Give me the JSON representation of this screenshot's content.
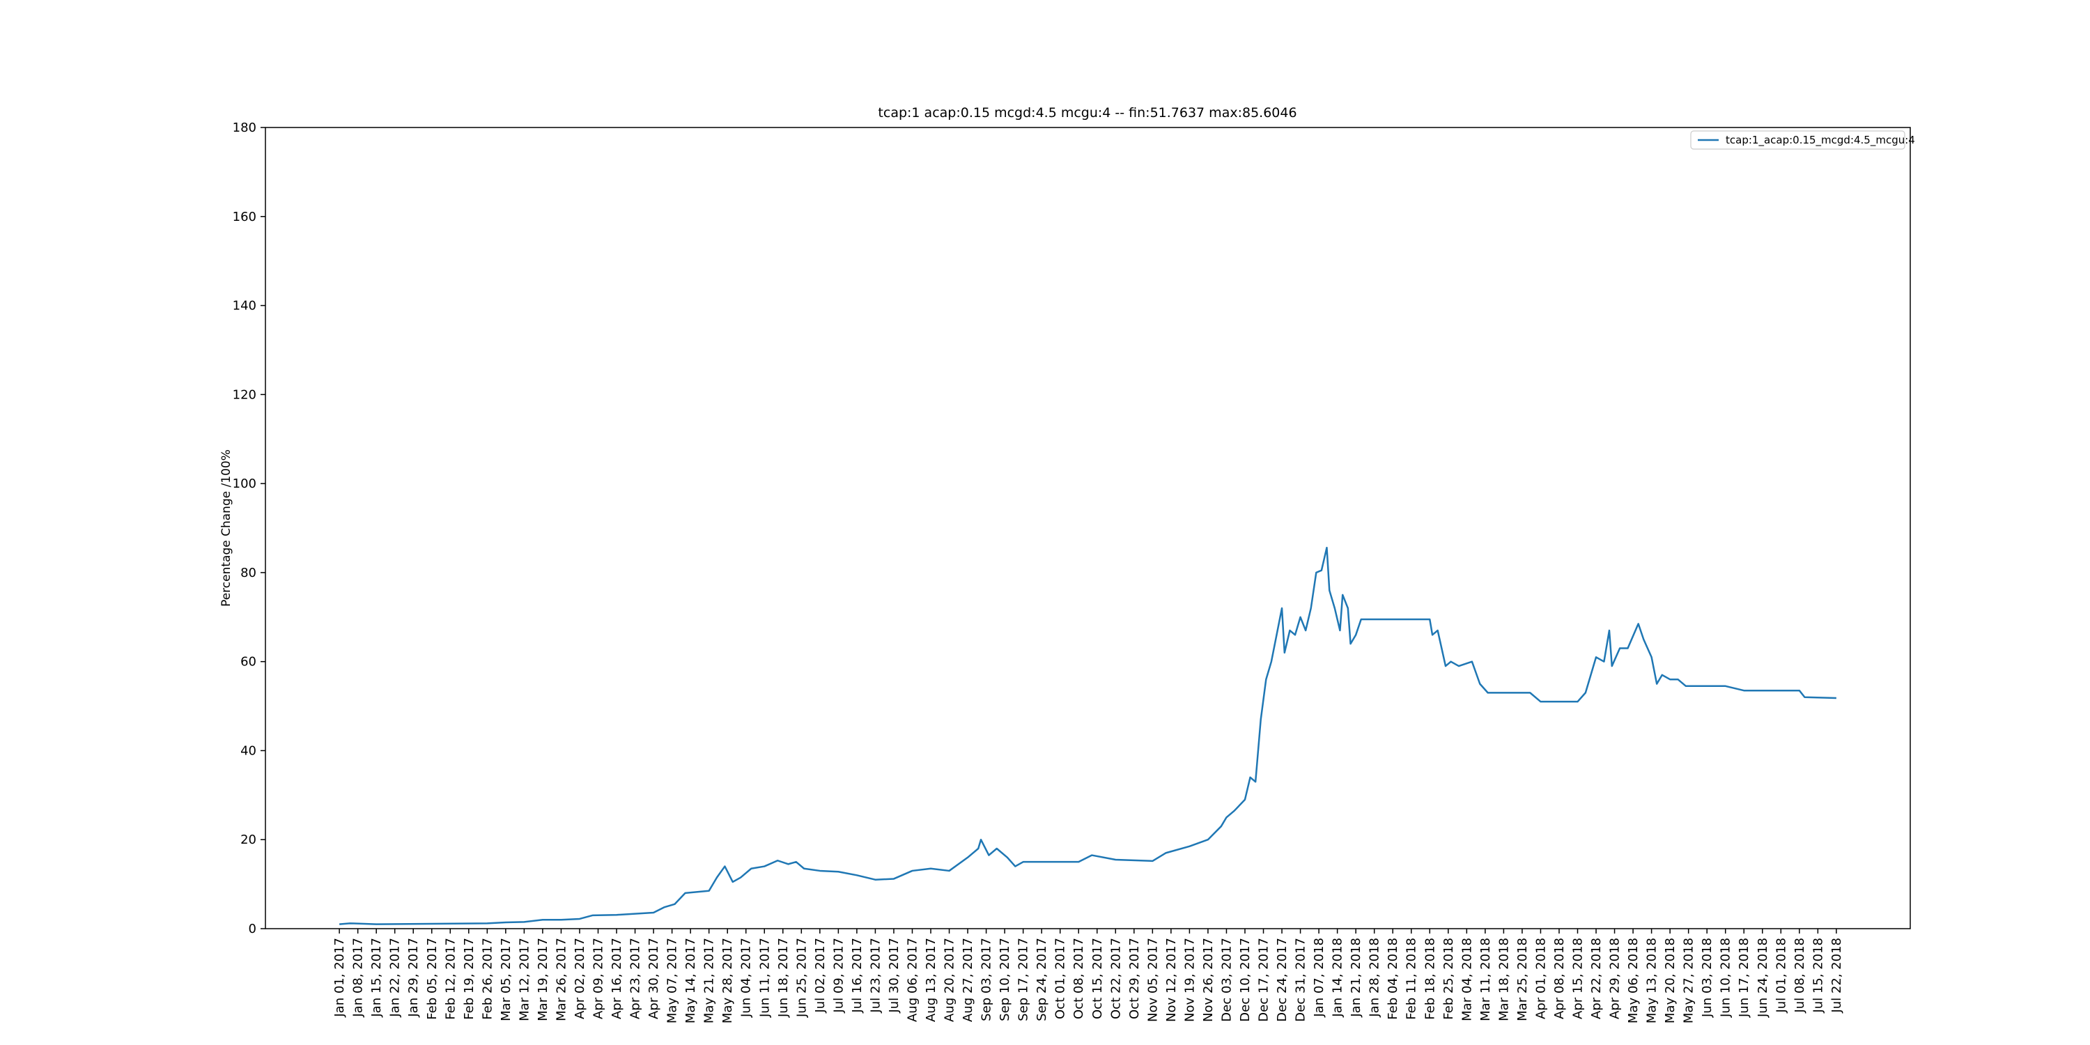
{
  "chart_data": {
    "type": "line",
    "title": "tcap:1 acap:0.15 mcgd:4.5 mcgu:4 -- fin:51.7637 max:85.6046",
    "ylabel": "Percentage Change /100%",
    "legend": "upper right",
    "grid": false,
    "xlim": [
      "2016-12-04",
      "2018-08-19"
    ],
    "ylim": [
      0,
      180
    ],
    "yticks": [
      0,
      20,
      40,
      60,
      80,
      100,
      120,
      140,
      160,
      180
    ],
    "xticks": [
      {
        "value": "2017-01-01",
        "label": "Jan 01, 2017"
      },
      {
        "value": "2017-01-08",
        "label": "Jan 08, 2017"
      },
      {
        "value": "2017-01-15",
        "label": "Jan 15, 2017"
      },
      {
        "value": "2017-01-22",
        "label": "Jan 22, 2017"
      },
      {
        "value": "2017-01-29",
        "label": "Jan 29, 2017"
      },
      {
        "value": "2017-02-05",
        "label": "Feb 05, 2017"
      },
      {
        "value": "2017-02-12",
        "label": "Feb 12, 2017"
      },
      {
        "value": "2017-02-19",
        "label": "Feb 19, 2017"
      },
      {
        "value": "2017-02-26",
        "label": "Feb 26, 2017"
      },
      {
        "value": "2017-03-05",
        "label": "Mar 05, 2017"
      },
      {
        "value": "2017-03-12",
        "label": "Mar 12, 2017"
      },
      {
        "value": "2017-03-19",
        "label": "Mar 19, 2017"
      },
      {
        "value": "2017-03-26",
        "label": "Mar 26, 2017"
      },
      {
        "value": "2017-04-02",
        "label": "Apr 02, 2017"
      },
      {
        "value": "2017-04-09",
        "label": "Apr 09, 2017"
      },
      {
        "value": "2017-04-16",
        "label": "Apr 16, 2017"
      },
      {
        "value": "2017-04-23",
        "label": "Apr 23, 2017"
      },
      {
        "value": "2017-04-30",
        "label": "Apr 30, 2017"
      },
      {
        "value": "2017-05-07",
        "label": "May 07, 2017"
      },
      {
        "value": "2017-05-14",
        "label": "May 14, 2017"
      },
      {
        "value": "2017-05-21",
        "label": "May 21, 2017"
      },
      {
        "value": "2017-05-28",
        "label": "May 28, 2017"
      },
      {
        "value": "2017-06-04",
        "label": "Jun 04, 2017"
      },
      {
        "value": "2017-06-11",
        "label": "Jun 11, 2017"
      },
      {
        "value": "2017-06-18",
        "label": "Jun 18, 2017"
      },
      {
        "value": "2017-06-25",
        "label": "Jun 25, 2017"
      },
      {
        "value": "2017-07-02",
        "label": "Jul 02, 2017"
      },
      {
        "value": "2017-07-09",
        "label": "Jul 09, 2017"
      },
      {
        "value": "2017-07-16",
        "label": "Jul 16, 2017"
      },
      {
        "value": "2017-07-23",
        "label": "Jul 23, 2017"
      },
      {
        "value": "2017-07-30",
        "label": "Jul 30, 2017"
      },
      {
        "value": "2017-08-06",
        "label": "Aug 06, 2017"
      },
      {
        "value": "2017-08-13",
        "label": "Aug 13, 2017"
      },
      {
        "value": "2017-08-20",
        "label": "Aug 20, 2017"
      },
      {
        "value": "2017-08-27",
        "label": "Aug 27, 2017"
      },
      {
        "value": "2017-09-03",
        "label": "Sep 03, 2017"
      },
      {
        "value": "2017-09-10",
        "label": "Sep 10, 2017"
      },
      {
        "value": "2017-09-17",
        "label": "Sep 17, 2017"
      },
      {
        "value": "2017-09-24",
        "label": "Sep 24, 2017"
      },
      {
        "value": "2017-10-01",
        "label": "Oct 01, 2017"
      },
      {
        "value": "2017-10-08",
        "label": "Oct 08, 2017"
      },
      {
        "value": "2017-10-15",
        "label": "Oct 15, 2017"
      },
      {
        "value": "2017-10-22",
        "label": "Oct 22, 2017"
      },
      {
        "value": "2017-10-29",
        "label": "Oct 29, 2017"
      },
      {
        "value": "2017-11-05",
        "label": "Nov 05, 2017"
      },
      {
        "value": "2017-11-12",
        "label": "Nov 12, 2017"
      },
      {
        "value": "2017-11-19",
        "label": "Nov 19, 2017"
      },
      {
        "value": "2017-11-26",
        "label": "Nov 26, 2017"
      },
      {
        "value": "2017-12-03",
        "label": "Dec 03, 2017"
      },
      {
        "value": "2017-12-10",
        "label": "Dec 10, 2017"
      },
      {
        "value": "2017-12-17",
        "label": "Dec 17, 2017"
      },
      {
        "value": "2017-12-24",
        "label": "Dec 24, 2017"
      },
      {
        "value": "2017-12-31",
        "label": "Dec 31, 2017"
      },
      {
        "value": "2018-01-07",
        "label": "Jan 07, 2018"
      },
      {
        "value": "2018-01-14",
        "label": "Jan 14, 2018"
      },
      {
        "value": "2018-01-21",
        "label": "Jan 21, 2018"
      },
      {
        "value": "2018-01-28",
        "label": "Jan 28, 2018"
      },
      {
        "value": "2018-02-04",
        "label": "Feb 04, 2018"
      },
      {
        "value": "2018-02-11",
        "label": "Feb 11, 2018"
      },
      {
        "value": "2018-02-18",
        "label": "Feb 18, 2018"
      },
      {
        "value": "2018-02-25",
        "label": "Feb 25, 2018"
      },
      {
        "value": "2018-03-04",
        "label": "Mar 04, 2018"
      },
      {
        "value": "2018-03-11",
        "label": "Mar 11, 2018"
      },
      {
        "value": "2018-03-18",
        "label": "Mar 18, 2018"
      },
      {
        "value": "2018-03-25",
        "label": "Mar 25, 2018"
      },
      {
        "value": "2018-04-01",
        "label": "Apr 01, 2018"
      },
      {
        "value": "2018-04-08",
        "label": "Apr 08, 2018"
      },
      {
        "value": "2018-04-15",
        "label": "Apr 15, 2018"
      },
      {
        "value": "2018-04-22",
        "label": "Apr 22, 2018"
      },
      {
        "value": "2018-04-29",
        "label": "Apr 29, 2018"
      },
      {
        "value": "2018-05-06",
        "label": "May 06, 2018"
      },
      {
        "value": "2018-05-13",
        "label": "May 13, 2018"
      },
      {
        "value": "2018-05-20",
        "label": "May 20, 2018"
      },
      {
        "value": "2018-05-27",
        "label": "May 27, 2018"
      },
      {
        "value": "2018-06-03",
        "label": "Jun 03, 2018"
      },
      {
        "value": "2018-06-10",
        "label": "Jun 10, 2018"
      },
      {
        "value": "2018-06-17",
        "label": "Jun 17, 2018"
      },
      {
        "value": "2018-06-24",
        "label": "Jun 24, 2018"
      },
      {
        "value": "2018-07-01",
        "label": "Jul 01, 2018"
      },
      {
        "value": "2018-07-08",
        "label": "Jul 08, 2018"
      },
      {
        "value": "2018-07-15",
        "label": "Jul 15, 2018"
      },
      {
        "value": "2018-07-22",
        "label": "Jul 22, 2018"
      }
    ],
    "x": [
      "2017-01-01",
      "2017-01-05",
      "2017-01-15",
      "2017-02-05",
      "2017-02-26",
      "2017-03-05",
      "2017-03-12",
      "2017-03-19",
      "2017-03-26",
      "2017-04-02",
      "2017-04-07",
      "2017-04-16",
      "2017-04-30",
      "2017-05-04",
      "2017-05-08",
      "2017-05-12",
      "2017-05-21",
      "2017-05-24",
      "2017-05-27",
      "2017-05-30",
      "2017-06-02",
      "2017-06-06",
      "2017-06-11",
      "2017-06-16",
      "2017-06-20",
      "2017-06-23",
      "2017-06-26",
      "2017-07-02",
      "2017-07-09",
      "2017-07-16",
      "2017-07-23",
      "2017-07-30",
      "2017-08-06",
      "2017-08-13",
      "2017-08-20",
      "2017-08-27",
      "2017-08-31",
      "2017-09-01",
      "2017-09-04",
      "2017-09-07",
      "2017-09-11",
      "2017-09-14",
      "2017-09-17",
      "2017-10-08",
      "2017-10-13",
      "2017-10-22",
      "2017-11-05",
      "2017-11-10",
      "2017-11-19",
      "2017-11-26",
      "2017-12-01",
      "2017-12-03",
      "2017-12-06",
      "2017-12-10",
      "2017-12-12",
      "2017-12-14",
      "2017-12-16",
      "2017-12-18",
      "2017-12-20",
      "2017-12-22",
      "2017-12-24",
      "2017-12-25",
      "2017-12-27",
      "2017-12-29",
      "2017-12-31",
      "2018-01-02",
      "2018-01-04",
      "2018-01-06",
      "2018-01-08",
      "2018-01-10",
      "2018-01-11",
      "2018-01-13",
      "2018-01-15",
      "2018-01-16",
      "2018-01-18",
      "2018-01-19",
      "2018-01-21",
      "2018-01-23",
      "2018-02-18",
      "2018-02-19",
      "2018-02-21",
      "2018-02-24",
      "2018-02-26",
      "2018-03-01",
      "2018-03-06",
      "2018-03-09",
      "2018-03-12",
      "2018-03-28",
      "2018-04-01",
      "2018-04-15",
      "2018-04-18",
      "2018-04-22",
      "2018-04-25",
      "2018-04-27",
      "2018-04-28",
      "2018-05-01",
      "2018-05-04",
      "2018-05-08",
      "2018-05-10",
      "2018-05-13",
      "2018-05-15",
      "2018-05-17",
      "2018-05-20",
      "2018-05-23",
      "2018-05-26",
      "2018-06-10",
      "2018-06-17",
      "2018-07-08",
      "2018-07-10",
      "2018-07-22"
    ],
    "series": [
      {
        "name": "tcap:1_acap:0.15_mcgd:4.5_mcgu:4",
        "color": "#1f77b4",
        "values": [
          1.0,
          1.2,
          1.0,
          1.1,
          1.2,
          1.4,
          1.5,
          2.0,
          2.0,
          2.2,
          3.0,
          3.1,
          3.6,
          4.8,
          5.5,
          8.0,
          8.5,
          11.5,
          14.0,
          10.5,
          11.5,
          13.5,
          14.0,
          15.3,
          14.5,
          15.0,
          13.5,
          13.0,
          12.8,
          12.0,
          11.0,
          11.2,
          13.0,
          13.5,
          13.0,
          16.0,
          18.0,
          20.0,
          16.5,
          18.0,
          16.0,
          14.0,
          15.0,
          15.0,
          16.5,
          15.5,
          15.2,
          17.0,
          18.5,
          20.0,
          23.0,
          25.0,
          26.5,
          29.0,
          34.0,
          33.0,
          47.0,
          56.0,
          60.0,
          66.0,
          72.0,
          62.0,
          67.0,
          66.0,
          70.0,
          67.0,
          72.0,
          80.0,
          80.5,
          85.6,
          76.0,
          72.0,
          67.0,
          75.0,
          72.0,
          64.0,
          66.0,
          69.5,
          69.5,
          66.0,
          67.0,
          59.0,
          60.0,
          59.0,
          60.0,
          55.0,
          53.0,
          53.0,
          51.0,
          51.0,
          53.0,
          61.0,
          60.0,
          67.0,
          59.0,
          63.0,
          63.0,
          68.5,
          65.0,
          61.0,
          55.0,
          57.0,
          56.0,
          56.0,
          54.5,
          54.5,
          53.5,
          53.5,
          52.0,
          51.8
        ]
      }
    ]
  }
}
